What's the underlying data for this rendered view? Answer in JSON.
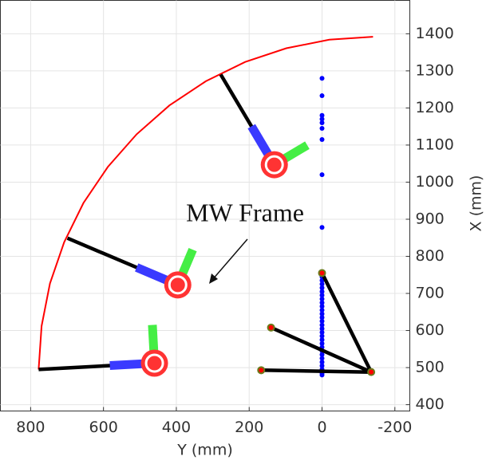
{
  "chart_data": {
    "type": "scatter",
    "xlabel": "Y (mm)",
    "ylabel": "X (mm)",
    "xlim": [
      883,
      -241
    ],
    "ylim": [
      383,
      1490
    ],
    "xticks": [
      800,
      600,
      400,
      200,
      0,
      -200
    ],
    "yticks": [
      400,
      500,
      600,
      700,
      800,
      900,
      1000,
      1100,
      1200,
      1300,
      1400
    ],
    "grid": true,
    "y_axis_position": "right",
    "annotation": "MW Frame",
    "series": [
      {
        "type": "line",
        "color": "#ff0000",
        "x": [
          778,
          770,
          747,
          708,
          655,
          588,
          509,
          419,
          319,
          211,
          98,
          -20,
          -140
        ],
        "values": [
          495,
          612,
          727,
          838,
          944,
          1041,
          1129,
          1207,
          1272,
          1324,
          1361,
          1384,
          1392
        ]
      },
      {
        "type": "line",
        "color": "#000000",
        "x": [
          778,
          460,
          null,
          699,
          396,
          null,
          278,
          131
        ],
        "values": [
          495,
          512,
          null,
          849,
          723,
          null,
          1290,
          1047
        ]
      },
      {
        "type": "scatter",
        "color": "#0000ff",
        "x": [
          0,
          0,
          0,
          0,
          0,
          0,
          0,
          0,
          0,
          0,
          0,
          0,
          0,
          0,
          0,
          0,
          0,
          0,
          0,
          0,
          0,
          0,
          0,
          0,
          0,
          0,
          0,
          0,
          0,
          0,
          0,
          0,
          0,
          0,
          0,
          0,
          0,
          0
        ],
        "values": [
          1280,
          1233,
          1180,
          1170,
          1160,
          1145,
          1115,
          1020,
          878,
          755,
          745,
          735,
          725,
          715,
          705,
          695,
          685,
          675,
          665,
          655,
          645,
          635,
          625,
          615,
          605,
          595,
          585,
          575,
          565,
          555,
          545,
          535,
          525,
          515,
          505,
          495,
          485,
          480
        ]
      },
      {
        "type": "line",
        "color": "#000000",
        "x": [
          167,
          -135,
          null,
          140,
          -135,
          null,
          0,
          -135
        ],
        "values": [
          493,
          488,
          null,
          608,
          488,
          null,
          755,
          488
        ]
      },
      {
        "type": "scatter",
        "color": "#ff0000",
        "x": [
          167,
          140,
          0,
          -135
        ],
        "values": [
          493,
          608,
          755,
          488
        ]
      },
      {
        "type": "frame",
        "color": "#ff3333",
        "x": [
          460,
          396,
          131
        ],
        "values": [
          512,
          723,
          1047
        ]
      }
    ]
  }
}
